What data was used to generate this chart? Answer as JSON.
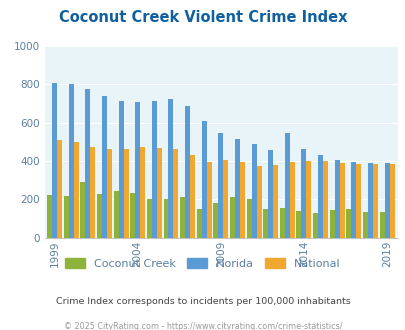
{
  "title": "Coconut Creek Violent Crime Index",
  "subtitle": "Crime Index corresponds to incidents per 100,000 inhabitants",
  "footer": "© 2025 CityRating.com - https://www.cityrating.com/crime-statistics/",
  "years": [
    1999,
    2000,
    2001,
    2002,
    2003,
    2004,
    2005,
    2006,
    2007,
    2008,
    2009,
    2010,
    2011,
    2012,
    2013,
    2014,
    2015,
    2016,
    2017,
    2018,
    2019
  ],
  "coconut_creek": [
    220,
    215,
    290,
    230,
    245,
    235,
    200,
    200,
    210,
    148,
    180,
    210,
    200,
    150,
    155,
    140,
    130,
    145,
    150,
    135,
    135
  ],
  "florida": [
    810,
    800,
    775,
    740,
    715,
    710,
    715,
    725,
    690,
    610,
    545,
    515,
    490,
    460,
    545,
    465,
    430,
    405,
    395,
    390,
    390
  ],
  "national": [
    510,
    500,
    475,
    465,
    465,
    475,
    470,
    465,
    430,
    395,
    405,
    395,
    375,
    380,
    395,
    400,
    400,
    390,
    385,
    385,
    385
  ],
  "bar_colors": {
    "coconut_creek": "#8db33a",
    "florida": "#5b9bd5",
    "national": "#f0a830"
  },
  "ylim": [
    0,
    1000
  ],
  "yticks": [
    0,
    200,
    400,
    600,
    800,
    1000
  ],
  "background_color": "#e8f4f8",
  "plot_bg": "#e8f4f8",
  "title_color": "#1060a0",
  "subtitle_color": "#444444",
  "footer_color": "#999999",
  "tick_label_color": "#5b7fa0",
  "legend_labels": [
    "Coconut Creek",
    "Florida",
    "National"
  ],
  "xtick_years": [
    1999,
    2004,
    2009,
    2014,
    2019
  ]
}
